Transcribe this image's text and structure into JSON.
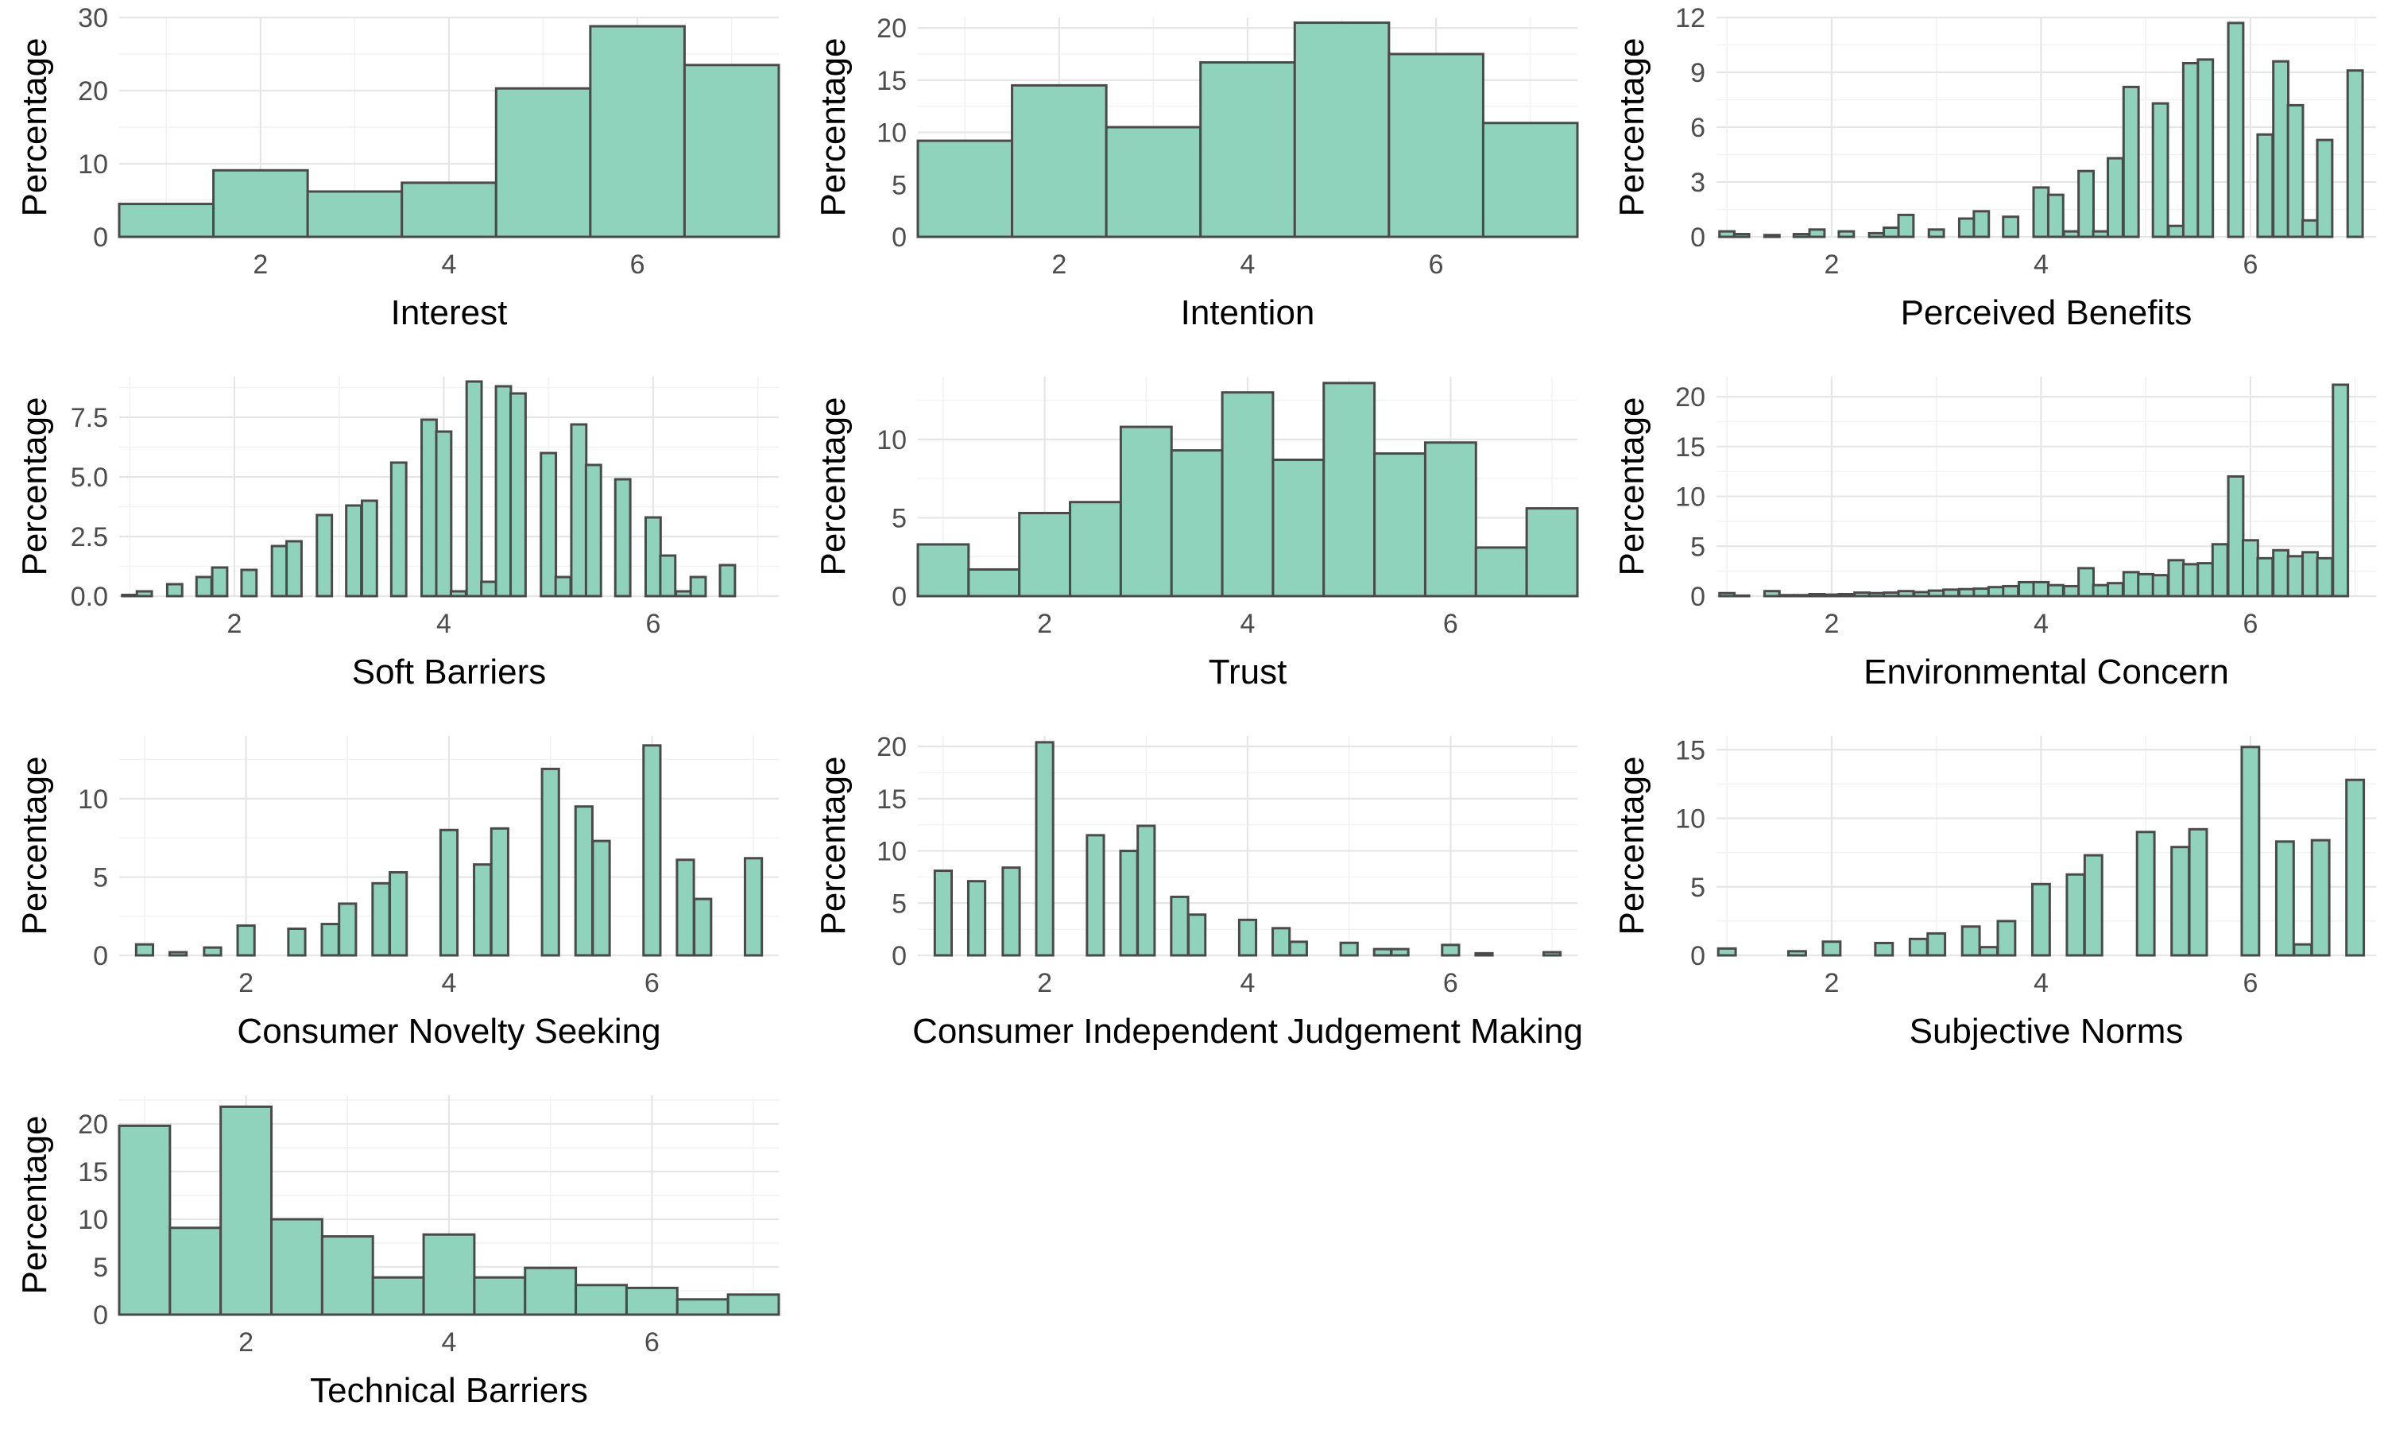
{
  "style": {
    "bar_fill": "#8fd3bd",
    "bar_stroke": "#4a4a4a",
    "grid": "#e6e6e6",
    "background": "#ffffff"
  },
  "chart_data": [
    {
      "type": "bar",
      "xlabel": "Interest",
      "ylabel": "Percentage",
      "grid": true,
      "xlim": [
        0.5,
        7.5
      ],
      "ylim": [
        0,
        30
      ],
      "yticks": [
        0,
        10,
        20,
        30
      ],
      "xticks": [
        2,
        4,
        6
      ],
      "bin_width": 1,
      "x": [
        1,
        2,
        3,
        4,
        5,
        6,
        7
      ],
      "values": [
        4.5,
        9.1,
        6.2,
        7.4,
        20.3,
        28.8,
        23.5
      ]
    },
    {
      "type": "bar",
      "xlabel": "Intention",
      "ylabel": "Percentage",
      "grid": true,
      "xlim": [
        0.5,
        7.5
      ],
      "ylim": [
        0,
        21
      ],
      "yticks": [
        0,
        5,
        10,
        15,
        20
      ],
      "xticks": [
        2,
        4,
        6
      ],
      "bin_width": 1,
      "x": [
        1,
        2,
        3,
        4,
        5,
        6,
        7
      ],
      "values": [
        9.2,
        14.5,
        10.5,
        16.7,
        20.5,
        17.5,
        10.9
      ]
    },
    {
      "type": "bar",
      "xlabel": "Perceived Benefits",
      "ylabel": "Percentage",
      "grid": true,
      "xlim": [
        0.9,
        7.2
      ],
      "ylim": [
        0,
        12
      ],
      "yticks": [
        0,
        3,
        6,
        9,
        12
      ],
      "xticks": [
        2,
        4,
        6
      ],
      "bin_width": 0.143,
      "x": [
        1.0,
        1.14,
        1.29,
        1.43,
        1.57,
        1.71,
        1.86,
        2.0,
        2.14,
        2.29,
        2.43,
        2.57,
        2.71,
        2.86,
        3.0,
        3.14,
        3.29,
        3.43,
        3.57,
        3.71,
        3.86,
        4.0,
        4.14,
        4.29,
        4.43,
        4.57,
        4.71,
        4.86,
        5.0,
        5.14,
        5.29,
        5.43,
        5.57,
        5.71,
        5.86,
        6.0,
        6.14,
        6.29,
        6.43,
        6.57,
        6.71,
        6.86,
        7.0
      ],
      "values": [
        0.3,
        0.15,
        0,
        0.1,
        0,
        0.15,
        0.4,
        0,
        0.3,
        0,
        0.2,
        0.5,
        1.2,
        0,
        0.4,
        0,
        1.0,
        1.4,
        0,
        1.1,
        0,
        2.7,
        2.3,
        0.3,
        3.6,
        0.3,
        4.3,
        8.2,
        0,
        7.3,
        0.6,
        9.5,
        9.7,
        0,
        11.7,
        0,
        5.6,
        9.6,
        7.2,
        0.9,
        5.3,
        0,
        9.1
      ]
    },
    {
      "type": "bar",
      "xlabel": "Soft Barriers",
      "ylabel": "Percentage",
      "grid": true,
      "xlim": [
        0.9,
        7.2
      ],
      "ylim": [
        0,
        9.2
      ],
      "yticks": [
        0,
        2.5,
        5,
        7.5
      ],
      "ytick_labels": [
        "0.0",
        "2.5",
        "5.0",
        "7.5"
      ],
      "xticks": [
        2,
        4,
        6
      ],
      "bin_width": 0.143,
      "x": [
        1.0,
        1.14,
        1.29,
        1.43,
        1.57,
        1.71,
        1.86,
        2.0,
        2.14,
        2.29,
        2.43,
        2.57,
        2.71,
        2.86,
        3.0,
        3.14,
        3.29,
        3.43,
        3.57,
        3.71,
        3.86,
        4.0,
        4.14,
        4.29,
        4.43,
        4.57,
        4.71,
        4.86,
        5.0,
        5.14,
        5.29,
        5.43,
        5.57,
        5.71,
        5.86,
        6.0,
        6.14,
        6.29,
        6.43,
        6.57,
        6.71,
        6.86,
        7.0
      ],
      "values": [
        0.05,
        0.2,
        0,
        0.5,
        0,
        0.8,
        1.2,
        0,
        1.1,
        0,
        2.1,
        2.3,
        0,
        3.4,
        0,
        3.8,
        4.0,
        0,
        5.6,
        0,
        7.4,
        6.9,
        0.2,
        9.0,
        0.6,
        8.8,
        8.5,
        0,
        6.0,
        0.8,
        7.2,
        5.5,
        0,
        4.9,
        0,
        3.3,
        1.7,
        0.2,
        0.8,
        0,
        1.3,
        0,
        0
      ]
    },
    {
      "type": "bar",
      "xlabel": "Trust",
      "ylabel": "Percentage",
      "grid": true,
      "xlim": [
        0.75,
        7.25
      ],
      "ylim": [
        0,
        14
      ],
      "yticks": [
        0,
        5,
        10
      ],
      "xticks": [
        2,
        4,
        6
      ],
      "bin_width": 0.5,
      "x": [
        1.0,
        1.5,
        2.0,
        2.5,
        3.0,
        3.5,
        4.0,
        4.5,
        5.0,
        5.5,
        6.0,
        6.5,
        7.0
      ],
      "values": [
        3.3,
        1.7,
        5.3,
        6.0,
        10.8,
        9.3,
        13.0,
        8.7,
        13.6,
        9.1,
        9.8,
        3.1,
        5.6
      ]
    },
    {
      "type": "bar",
      "xlabel": "Environmental Concern",
      "ylabel": "Percentage",
      "grid": true,
      "xlim": [
        0.9,
        7.2
      ],
      "ylim": [
        0,
        22
      ],
      "yticks": [
        0,
        5,
        10,
        15,
        20
      ],
      "xticks": [
        2,
        4,
        6
      ],
      "bin_width": 0.143,
      "x": [
        1.0,
        1.14,
        1.29,
        1.43,
        1.57,
        1.71,
        1.86,
        2.0,
        2.14,
        2.29,
        2.43,
        2.57,
        2.71,
        2.86,
        3.0,
        3.14,
        3.29,
        3.43,
        3.57,
        3.71,
        3.86,
        4.0,
        4.14,
        4.29,
        4.43,
        4.57,
        4.71,
        4.86,
        5.0,
        5.14,
        5.29,
        5.43,
        5.57,
        5.71,
        5.86,
        6.0,
        6.14,
        6.29,
        6.43,
        6.57,
        6.71,
        6.86,
        7.0
      ],
      "values": [
        0.3,
        0.05,
        0,
        0.5,
        0.1,
        0.1,
        0.2,
        0.15,
        0.2,
        0.35,
        0.3,
        0.35,
        0.5,
        0.4,
        0.55,
        0.65,
        0.7,
        0.75,
        0.9,
        1.0,
        1.4,
        1.4,
        1.1,
        1.0,
        2.8,
        1.1,
        1.3,
        2.4,
        2.2,
        2.1,
        3.6,
        3.2,
        3.3,
        5.2,
        12.0,
        5.6,
        3.8,
        4.6,
        4.0,
        4.4,
        3.8,
        21.2,
        0
      ]
    },
    {
      "type": "bar",
      "xlabel": "Consumer Novelty Seeking",
      "ylabel": "Percentage",
      "grid": true,
      "xlim": [
        0.75,
        7.25
      ],
      "ylim": [
        0,
        14
      ],
      "yticks": [
        0,
        5,
        10
      ],
      "xticks": [
        2,
        4,
        6
      ],
      "bin_width": 0.166,
      "x": [
        1.0,
        1.17,
        1.33,
        1.5,
        1.67,
        1.83,
        2.0,
        2.17,
        2.33,
        2.5,
        2.67,
        2.83,
        3.0,
        3.17,
        3.33,
        3.5,
        3.67,
        3.83,
        4.0,
        4.17,
        4.33,
        4.5,
        4.67,
        4.83,
        5.0,
        5.17,
        5.33,
        5.5,
        5.67,
        5.83,
        6.0,
        6.17,
        6.33,
        6.5,
        6.67,
        6.83,
        7.0
      ],
      "values": [
        0.7,
        0,
        0.2,
        0,
        0.5,
        0,
        1.9,
        0,
        0,
        1.7,
        0,
        2.0,
        3.3,
        0,
        4.6,
        5.3,
        0,
        0,
        8.0,
        0,
        5.8,
        8.1,
        0,
        0,
        11.9,
        0,
        9.5,
        7.3,
        0,
        0,
        13.4,
        0,
        6.1,
        3.6,
        0,
        0,
        6.2
      ]
    },
    {
      "type": "bar",
      "xlabel": "Consumer Independent Judgement Making",
      "ylabel": "Percentage",
      "grid": true,
      "xlim": [
        0.75,
        7.25
      ],
      "ylim": [
        0,
        21
      ],
      "yticks": [
        0,
        5,
        10,
        15,
        20
      ],
      "xticks": [
        2,
        4,
        6
      ],
      "bin_width": 0.166,
      "x": [
        1.0,
        1.17,
        1.33,
        1.5,
        1.67,
        1.83,
        2.0,
        2.17,
        2.33,
        2.5,
        2.67,
        2.83,
        3.0,
        3.17,
        3.33,
        3.5,
        3.67,
        3.83,
        4.0,
        4.17,
        4.33,
        4.5,
        4.67,
        4.83,
        5.0,
        5.17,
        5.33,
        5.5,
        5.67,
        5.83,
        6.0,
        6.17,
        6.33,
        6.5,
        6.67,
        6.83,
        7.0
      ],
      "values": [
        8.1,
        0,
        7.1,
        0,
        8.4,
        0,
        20.4,
        0,
        0,
        11.5,
        0,
        10.0,
        12.4,
        0,
        5.6,
        3.9,
        0,
        0,
        3.4,
        0,
        2.6,
        1.3,
        0,
        0,
        1.2,
        0,
        0.6,
        0.6,
        0,
        0,
        1.0,
        0,
        0.2,
        0,
        0,
        0,
        0.3
      ]
    },
    {
      "type": "bar",
      "xlabel": "Subjective Norms",
      "ylabel": "Percentage",
      "grid": true,
      "xlim": [
        0.9,
        7.2
      ],
      "ylim": [
        0,
        16
      ],
      "yticks": [
        0,
        5,
        10,
        15
      ],
      "xticks": [
        2,
        4,
        6
      ],
      "bin_width": 0.166,
      "x": [
        1.0,
        1.17,
        1.33,
        1.5,
        1.67,
        1.83,
        2.0,
        2.17,
        2.33,
        2.5,
        2.67,
        2.83,
        3.0,
        3.17,
        3.33,
        3.5,
        3.67,
        3.83,
        4.0,
        4.17,
        4.33,
        4.5,
        4.67,
        4.83,
        5.0,
        5.17,
        5.33,
        5.5,
        5.67,
        5.83,
        6.0,
        6.17,
        6.33,
        6.5,
        6.67,
        6.83,
        7.0
      ],
      "values": [
        0.5,
        0,
        0,
        0,
        0.3,
        0,
        1.0,
        0,
        0,
        0.9,
        0,
        1.2,
        1.6,
        0,
        2.1,
        0.6,
        2.5,
        0,
        5.2,
        0,
        5.9,
        7.3,
        0,
        0,
        9.0,
        0,
        7.9,
        9.2,
        0,
        0,
        15.2,
        0,
        8.3,
        0.8,
        8.4,
        0,
        12.8
      ]
    },
    {
      "type": "bar",
      "xlabel": "Technical Barriers",
      "ylabel": "Percentage",
      "grid": true,
      "xlim": [
        0.75,
        7.25
      ],
      "ylim": [
        0,
        23
      ],
      "yticks": [
        0,
        5,
        10,
        15,
        20
      ],
      "xticks": [
        2,
        4,
        6
      ],
      "bin_width": 0.5,
      "x": [
        1.0,
        1.5,
        2.0,
        2.5,
        3.0,
        3.5,
        4.0,
        4.5,
        5.0,
        5.5,
        6.0,
        6.5,
        7.0
      ],
      "values": [
        19.8,
        9.1,
        21.8,
        10.0,
        8.2,
        3.9,
        8.4,
        3.9,
        4.9,
        3.1,
        2.8,
        1.6,
        2.1
      ]
    }
  ]
}
